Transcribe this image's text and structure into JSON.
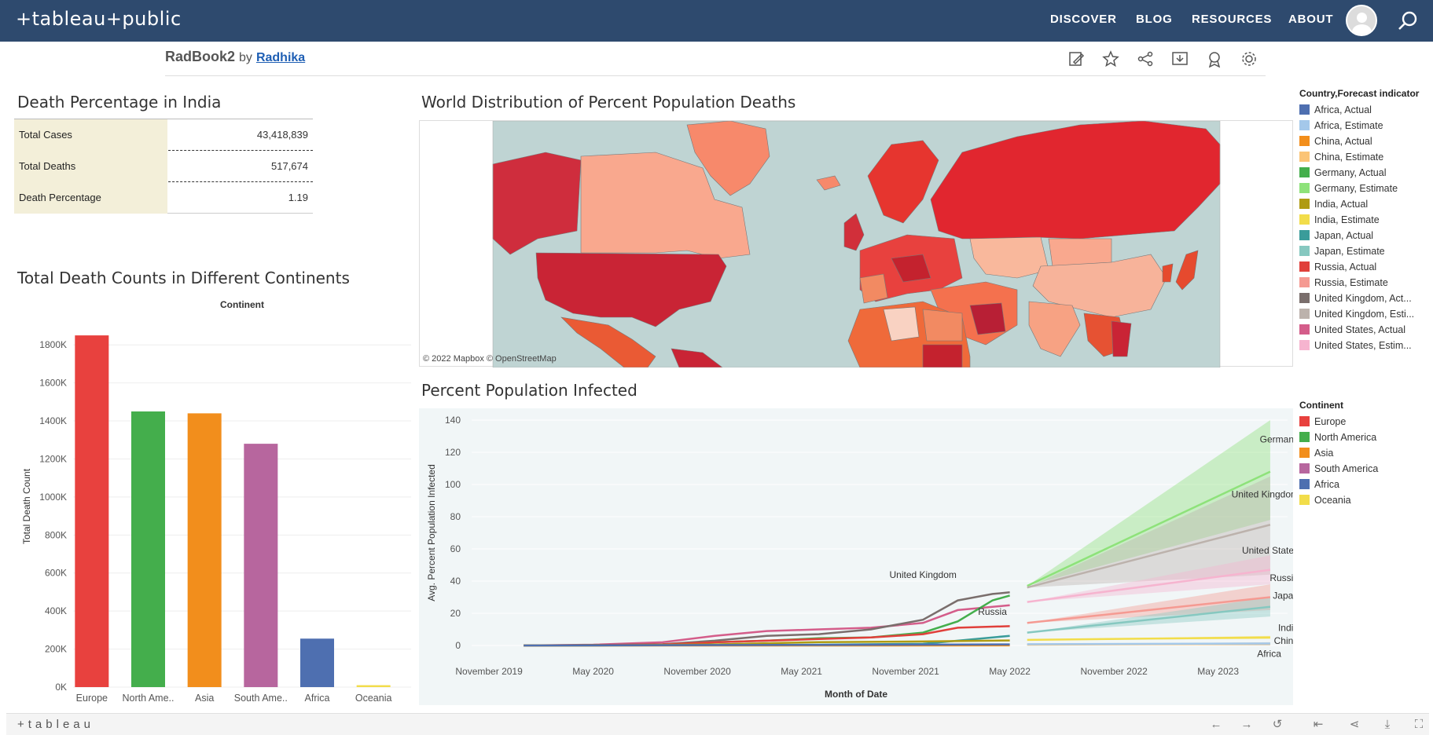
{
  "header": {
    "brand": "+tableau+public",
    "nav": [
      "DISCOVER",
      "BLOG",
      "RESOURCES",
      "ABOUT"
    ]
  },
  "workbook": {
    "name": "RadBook2",
    "by": "by",
    "author": "Radhika"
  },
  "kpi": {
    "title": "Death Percentage in India",
    "rows": [
      {
        "label": "Total Cases",
        "value": "43,418,839"
      },
      {
        "label": "Total Deaths",
        "value": "517,674"
      },
      {
        "label": "Death Percentage",
        "value": "1.19"
      }
    ]
  },
  "map": {
    "title": "World Distribution of Percent Population Deaths",
    "attribution": "© 2022 Mapbox  © OpenStreetMap"
  },
  "legend_country": {
    "title": "Country,Forecast indicator",
    "items": [
      {
        "label": "Africa, Actual",
        "color": "#4e6fb0"
      },
      {
        "label": "Africa, Estimate",
        "color": "#a4c8ea"
      },
      {
        "label": "China, Actual",
        "color": "#f28e1c"
      },
      {
        "label": "China, Estimate",
        "color": "#fbc476"
      },
      {
        "label": "Germany, Actual",
        "color": "#44ae4c"
      },
      {
        "label": "Germany, Estimate",
        "color": "#8ee27a"
      },
      {
        "label": "India, Actual",
        "color": "#b09b12"
      },
      {
        "label": "India, Estimate",
        "color": "#f2dd4a"
      },
      {
        "label": "Japan, Actual",
        "color": "#3a9c9a"
      },
      {
        "label": "Japan, Estimate",
        "color": "#86c8c0"
      },
      {
        "label": "Russia, Actual",
        "color": "#e0403b"
      },
      {
        "label": "Russia, Estimate",
        "color": "#f59a92"
      },
      {
        "label": "United Kingdom, Act...",
        "color": "#7a6e6c"
      },
      {
        "label": "United Kingdom, Esti...",
        "color": "#bcb2ac"
      },
      {
        "label": "United States, Actual",
        "color": "#d45d8a"
      },
      {
        "label": "United States, Estim...",
        "color": "#f6b4cf"
      }
    ]
  },
  "legend_continent": {
    "title": "Continent",
    "items": [
      {
        "label": "Europe",
        "color": "#e8413e"
      },
      {
        "label": "North America",
        "color": "#44ae4c"
      },
      {
        "label": "Asia",
        "color": "#f28e1c"
      },
      {
        "label": "South America",
        "color": "#b7669e"
      },
      {
        "label": "Africa",
        "color": "#4e6fb0"
      },
      {
        "label": "Oceania",
        "color": "#f2dd4a"
      }
    ]
  },
  "chart_data": [
    {
      "type": "bar",
      "title": "Total Death Counts in Different Continents",
      "subtitle": "Continent",
      "ylabel": "Total Death Count",
      "ylim": [
        0,
        1900000
      ],
      "ticks": [
        {
          "value": 0,
          "label": "0K"
        },
        {
          "value": 200000,
          "label": "200K"
        },
        {
          "value": 400000,
          "label": "400K"
        },
        {
          "value": 600000,
          "label": "600K"
        },
        {
          "value": 800000,
          "label": "800K"
        },
        {
          "value": 1000000,
          "label": "1000K"
        },
        {
          "value": 1200000,
          "label": "1200K"
        },
        {
          "value": 1400000,
          "label": "1400K"
        },
        {
          "value": 1600000,
          "label": "1600K"
        },
        {
          "value": 1800000,
          "label": "1800K"
        }
      ],
      "categories": [
        "Europe",
        "North Ame..",
        "Asia",
        "South Ame..",
        "Africa",
        "Oceania"
      ],
      "values": [
        1850000,
        1450000,
        1440000,
        1280000,
        255000,
        10000
      ],
      "colors": [
        "#e8413e",
        "#44ae4c",
        "#f28e1c",
        "#b7669e",
        "#4e6fb0",
        "#f2dd4a"
      ]
    },
    {
      "type": "line",
      "title": "Percent Population Infected",
      "xlabel": "Month of Date",
      "ylabel": "Avg. Percent Population Infected",
      "ylim": [
        0,
        140
      ],
      "xlim": [
        "2019-10",
        "2023-09"
      ],
      "yticks": [
        0,
        20,
        40,
        60,
        80,
        100,
        120,
        140
      ],
      "xticks": [
        {
          "value": "2019-11",
          "label": "November 2019"
        },
        {
          "value": "2020-05",
          "label": "May 2020"
        },
        {
          "value": "2020-11",
          "label": "November 2020"
        },
        {
          "value": "2021-05",
          "label": "May 2021"
        },
        {
          "value": "2021-11",
          "label": "November 2021"
        },
        {
          "value": "2022-05",
          "label": "May 2022"
        },
        {
          "value": "2022-11",
          "label": "November 2022"
        },
        {
          "value": "2023-05",
          "label": "May 2023"
        }
      ],
      "series": [
        {
          "name": "United States",
          "color": "#d45d8a",
          "x": [
            "2020-01",
            "2020-05",
            "2020-09",
            "2020-12",
            "2021-03",
            "2021-06",
            "2021-09",
            "2021-12",
            "2022-02",
            "2022-05"
          ],
          "y": [
            0,
            0.5,
            2,
            6,
            9,
            10,
            11,
            14,
            22,
            25
          ]
        },
        {
          "name": "United Kingdom",
          "color": "#7a6e6c",
          "x": [
            "2020-01",
            "2020-05",
            "2020-09",
            "2020-12",
            "2021-03",
            "2021-06",
            "2021-09",
            "2021-12",
            "2022-02",
            "2022-04",
            "2022-05"
          ],
          "y": [
            0,
            0.3,
            0.8,
            3,
            6,
            7,
            10,
            16,
            28,
            32,
            33
          ]
        },
        {
          "name": "Germany",
          "color": "#44ae4c",
          "x": [
            "2020-01",
            "2020-05",
            "2020-09",
            "2020-12",
            "2021-03",
            "2021-06",
            "2021-09",
            "2021-12",
            "2022-02",
            "2022-04",
            "2022-05"
          ],
          "y": [
            0,
            0.2,
            0.4,
            2,
            3,
            4.5,
            5,
            8,
            15,
            28,
            31
          ]
        },
        {
          "name": "Russia",
          "color": "#e0403b",
          "x": [
            "2020-01",
            "2020-05",
            "2020-09",
            "2020-12",
            "2021-03",
            "2021-06",
            "2021-09",
            "2021-12",
            "2022-02",
            "2022-05"
          ],
          "y": [
            0,
            0.2,
            0.7,
            2,
            3,
            4,
            5,
            7,
            11,
            12
          ]
        },
        {
          "name": "Japan",
          "color": "#3a9c9a",
          "x": [
            "2020-01",
            "2020-06",
            "2020-12",
            "2021-06",
            "2021-12",
            "2022-02",
            "2022-05"
          ],
          "y": [
            0,
            0,
            0.2,
            0.5,
            1,
            3,
            6
          ]
        },
        {
          "name": "India",
          "color": "#b09b12",
          "x": [
            "2020-01",
            "2020-06",
            "2020-12",
            "2021-06",
            "2021-12",
            "2022-05"
          ],
          "y": [
            0,
            0.1,
            0.7,
            2.1,
            2.5,
            3.1
          ]
        },
        {
          "name": "China",
          "color": "#f28e1c",
          "x": [
            "2020-01",
            "2020-06",
            "2021-06",
            "2022-05"
          ],
          "y": [
            0,
            0,
            0.01,
            0.05
          ]
        },
        {
          "name": "Africa",
          "color": "#4e6fb0",
          "x": [
            "2020-01",
            "2020-06",
            "2021-06",
            "2022-05"
          ],
          "y": [
            0,
            0.1,
            0.4,
            0.7
          ]
        }
      ],
      "forecast": [
        {
          "name": "Germany",
          "color": "#8ee27a",
          "x0": "2022-06",
          "x1": "2023-08",
          "y0": 37,
          "y1": 108,
          "lo1": 78,
          "hi1": 140
        },
        {
          "name": "United Kingdom",
          "color": "#bcb2ac",
          "x0": "2022-06",
          "x1": "2023-08",
          "y0": 36,
          "y1": 75,
          "lo1": 44,
          "hi1": 105
        },
        {
          "name": "United States",
          "color": "#f6b4cf",
          "x0": "2022-06",
          "x1": "2023-08",
          "y0": 27,
          "y1": 47,
          "lo1": 38,
          "hi1": 56
        },
        {
          "name": "Russia",
          "color": "#f59a92",
          "x0": "2022-06",
          "x1": "2023-08",
          "y0": 14,
          "y1": 30,
          "lo1": 22,
          "hi1": 38
        },
        {
          "name": "Japan",
          "color": "#86c8c0",
          "x0": "2022-06",
          "x1": "2023-08",
          "y0": 8,
          "y1": 24,
          "lo1": 18,
          "hi1": 30
        },
        {
          "name": "India",
          "color": "#f2dd4a",
          "x0": "2022-06",
          "x1": "2023-08",
          "y0": 3.5,
          "y1": 5,
          "lo1": 4,
          "hi1": 6
        },
        {
          "name": "China",
          "color": "#fbc476",
          "x0": "2022-06",
          "x1": "2023-08",
          "y0": 0.5,
          "y1": 1,
          "lo1": 0,
          "hi1": 2
        },
        {
          "name": "Africa",
          "color": "#a4c8ea",
          "x0": "2022-06",
          "x1": "2023-08",
          "y0": 0.8,
          "y1": 1.2,
          "lo1": 0,
          "hi1": 2
        }
      ],
      "labels": [
        {
          "text": "United Kingdom",
          "x": "2021-12",
          "y": 44
        },
        {
          "text": "Russia",
          "x": "2022-04",
          "y": 21
        },
        {
          "text": "Germany",
          "x": "2023-09",
          "y": 128
        },
        {
          "text": "United Kingdom",
          "x": "2023-09",
          "y": 94
        },
        {
          "text": "United States",
          "x": "2023-09",
          "y": 59
        },
        {
          "text": "Russia",
          "x": "2023-09",
          "y": 42
        },
        {
          "text": "Japan",
          "x": "2023-09",
          "y": 31
        },
        {
          "text": "India",
          "x": "2023-09",
          "y": 11
        },
        {
          "text": "China",
          "x": "2023-09",
          "y": 3
        },
        {
          "text": "Africa",
          "x": "2023-08",
          "y": -5
        }
      ]
    }
  ]
}
